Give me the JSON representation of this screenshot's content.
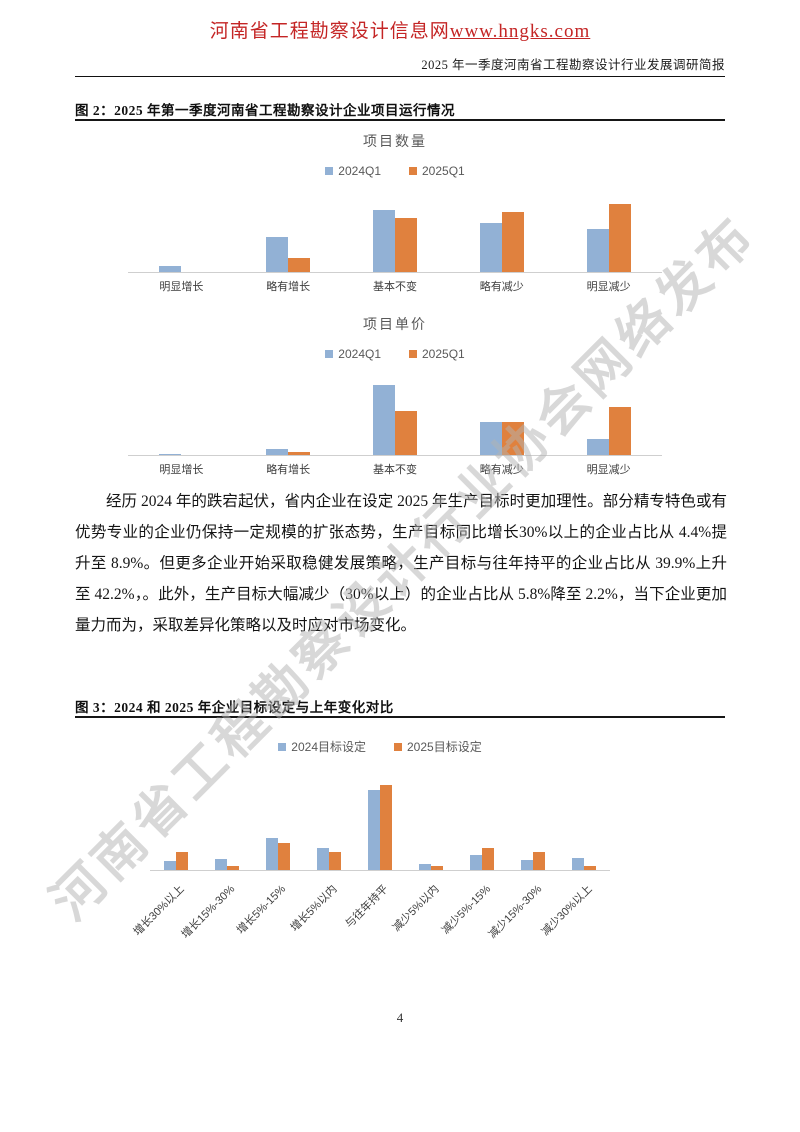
{
  "header": {
    "site_title": "河南省工程勘察设计信息网",
    "site_url": "www.hngks.com",
    "report_title": "2025 年一季度河南省工程勘察设计行业发展调研简报"
  },
  "watermark": "河南省工程勘察设计行业协会网络发布",
  "figure2": {
    "caption": "图 2：2025 年第一季度河南省工程勘察设计企业项目运行情况"
  },
  "figure3": {
    "caption": "图 3：2024 和 2025 年企业目标设定与上年变化对比"
  },
  "paragraph": "经历 2024 年的跌宕起伏，省内企业在设定 2025 年生产目标时更加理性。部分精专特色或有优势专业的企业仍保持一定规模的扩张态势，生产目标同比增长30%以上的企业占比从 4.4%提升至 8.9%。但更多企业开始采取稳健发展策略，生产目标与往年持平的企业占比从 39.9%上升至 42.2%，。此外，生产目标大幅减少（30%以上）的企业占比从 5.8%降至 2.2%，当下企业更加量力而为，采取差异化策略以及时应对市场变化。",
  "page": {
    "number": "4"
  },
  "colors": {
    "accent_red": "#c42525",
    "bar_blue": "#92b1d5",
    "bar_orange": "#e0813e",
    "chart_text_gray": "#595959",
    "axis_line": "#cfcfcf",
    "watermark_gray": "#b3b3b3"
  },
  "chart_data": [
    {
      "type": "bar",
      "title": "项目数量",
      "categories": [
        "明显增长",
        "略有增长",
        "基本不变",
        "略有减少",
        "明显减少"
      ],
      "series": [
        {
          "name": "2024Q1",
          "color": "#92b1d5",
          "values": [
            3,
            18,
            32,
            25,
            22
          ]
        },
        {
          "name": "2025Q1",
          "color": "#e0813e",
          "values": [
            0,
            7,
            28,
            31,
            35
          ]
        }
      ],
      "legend_position": "top",
      "grid": "off",
      "value_axis": "hidden"
    },
    {
      "type": "bar",
      "title": "项目单价",
      "categories": [
        "明显增长",
        "略有增长",
        "基本不变",
        "略有减少",
        "明显减少"
      ],
      "series": [
        {
          "name": "2024Q1",
          "color": "#92b1d5",
          "values": [
            1,
            5,
            55,
            26,
            13
          ]
        },
        {
          "name": "2025Q1",
          "color": "#e0813e",
          "values": [
            0,
            2.5,
            35,
            26,
            37.5
          ]
        }
      ],
      "legend_position": "top",
      "grid": "off",
      "value_axis": "hidden"
    },
    {
      "type": "bar",
      "title": "",
      "categories": [
        "增长30%以上",
        "增长15%-30%",
        "增长5%-15%",
        "增长5%以内",
        "与往年持平",
        "减少5%以内",
        "减少5%-15%",
        "减少15%-30%",
        "减少30%以上"
      ],
      "series": [
        {
          "name": "2024目标设定",
          "color": "#92b1d5",
          "values": [
            4.4,
            5.5,
            16,
            11,
            39.9,
            2.8,
            7.5,
            4.8,
            5.8
          ]
        },
        {
          "name": "2025目标设定",
          "color": "#e0813e",
          "values": [
            8.9,
            2.2,
            13.5,
            9.2,
            42.2,
            2.0,
            11.0,
            9.0,
            2.2
          ]
        }
      ],
      "legend_position": "top",
      "grid": "off",
      "value_axis": "hidden",
      "category_label_rotation": -45
    }
  ]
}
